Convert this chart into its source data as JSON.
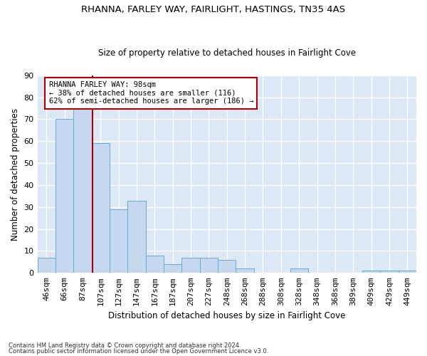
{
  "title1": "RHANNA, FARLEY WAY, FAIRLIGHT, HASTINGS, TN35 4AS",
  "title2": "Size of property relative to detached houses in Fairlight Cove",
  "xlabel": "Distribution of detached houses by size in Fairlight Cove",
  "ylabel": "Number of detached properties",
  "categories": [
    "46sqm",
    "66sqm",
    "87sqm",
    "107sqm",
    "127sqm",
    "147sqm",
    "167sqm",
    "187sqm",
    "207sqm",
    "227sqm",
    "248sqm",
    "268sqm",
    "288sqm",
    "308sqm",
    "328sqm",
    "348sqm",
    "368sqm",
    "389sqm",
    "409sqm",
    "429sqm",
    "449sqm"
  ],
  "values": [
    7,
    70,
    75,
    59,
    29,
    33,
    8,
    4,
    7,
    7,
    6,
    2,
    0,
    0,
    2,
    0,
    0,
    0,
    1,
    1,
    1
  ],
  "bar_color": "#c5d8f0",
  "bar_edge_color": "#6aaad4",
  "marker_label": "RHANNA FARLEY WAY: 98sqm",
  "annotation_line1": "← 38% of detached houses are smaller (116)",
  "annotation_line2": "62% of semi-detached houses are larger (186) →",
  "marker_color": "#aa0000",
  "bg_color": "#dce8f5",
  "grid_color": "#ffffff",
  "fig_bg": "#ffffff",
  "ylim": [
    0,
    90
  ],
  "yticks": [
    0,
    10,
    20,
    30,
    40,
    50,
    60,
    70,
    80,
    90
  ],
  "footnote1": "Contains HM Land Registry data © Crown copyright and database right 2024.",
  "footnote2": "Contains public sector information licensed under the Open Government Licence v3.0."
}
